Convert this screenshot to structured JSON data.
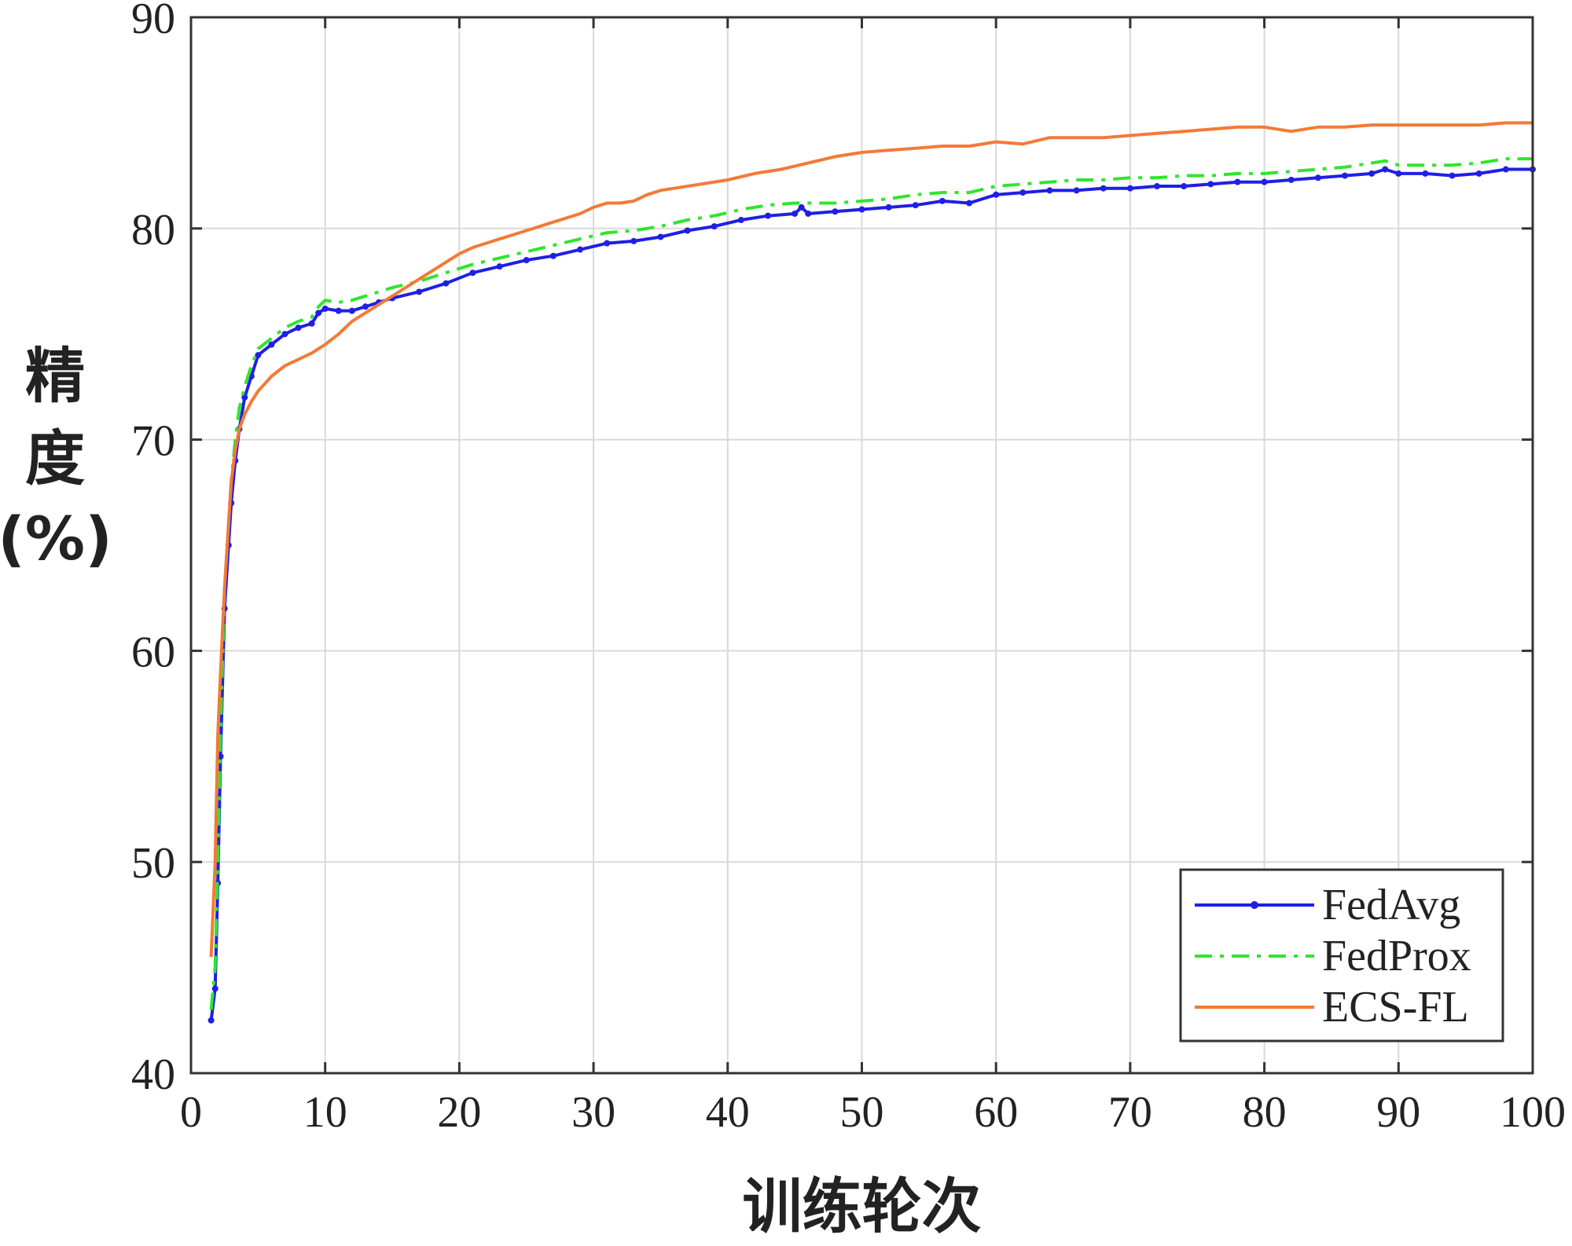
{
  "chart_data": {
    "type": "line",
    "title": "",
    "xlabel": "训练轮次",
    "ylabel_lines": [
      "精",
      "度",
      "(%)"
    ],
    "xlim": [
      0,
      100
    ],
    "ylim": [
      40,
      90
    ],
    "xticks": [
      0,
      10,
      20,
      30,
      40,
      50,
      60,
      70,
      80,
      90,
      100
    ],
    "yticks": [
      40,
      50,
      60,
      70,
      80,
      90
    ],
    "grid": true,
    "legend_position": "bottom-right",
    "series": [
      {
        "name": "FedAvg",
        "color": "#1f1fe6",
        "style": "solid-dot",
        "x": [
          1.5,
          1.8,
          2.0,
          2.2,
          2.5,
          2.8,
          3.0,
          3.3,
          3.6,
          4.0,
          4.5,
          5.0,
          6,
          7,
          8,
          9,
          9.5,
          10,
          11,
          12,
          13,
          14,
          15,
          17,
          19,
          21,
          23,
          25,
          27,
          29,
          31,
          33,
          35,
          37,
          39,
          41,
          43,
          45,
          45.5,
          46,
          48,
          50,
          52,
          54,
          56,
          58,
          60,
          62,
          64,
          66,
          68,
          70,
          72,
          74,
          76,
          78,
          80,
          82,
          84,
          86,
          88,
          89,
          90,
          92,
          94,
          96,
          98,
          100
        ],
        "y": [
          42.5,
          44,
          49,
          55,
          62,
          65,
          67,
          69,
          70.5,
          72,
          73,
          74,
          74.5,
          75,
          75.3,
          75.5,
          76,
          76.2,
          76.1,
          76.1,
          76.3,
          76.5,
          76.7,
          77.0,
          77.4,
          77.9,
          78.2,
          78.5,
          78.7,
          79.0,
          79.3,
          79.4,
          79.6,
          79.9,
          80.1,
          80.4,
          80.6,
          80.7,
          81.0,
          80.7,
          80.8,
          80.9,
          81.0,
          81.1,
          81.3,
          81.2,
          81.6,
          81.7,
          81.8,
          81.8,
          81.9,
          81.9,
          82.0,
          82.0,
          82.1,
          82.2,
          82.2,
          82.3,
          82.4,
          82.5,
          82.6,
          82.8,
          82.6,
          82.6,
          82.5,
          82.6,
          82.8,
          82.8
        ]
      },
      {
        "name": "FedProx",
        "color": "#2ee62e",
        "style": "dash-dot",
        "x": [
          1.5,
          1.8,
          2.0,
          2.2,
          2.5,
          2.8,
          3.0,
          3.3,
          3.6,
          4.0,
          4.5,
          5.0,
          6,
          7,
          8,
          9,
          9.5,
          10,
          11,
          12,
          13,
          14,
          15,
          17,
          19,
          21,
          23,
          25,
          27,
          29,
          31,
          33,
          35,
          37,
          39,
          41,
          43,
          45,
          46,
          48,
          50,
          52,
          54,
          56,
          58,
          60,
          62,
          64,
          66,
          68,
          70,
          72,
          74,
          76,
          78,
          80,
          82,
          84,
          86,
          88,
          89,
          90,
          92,
          94,
          96,
          98,
          100
        ],
        "y": [
          43,
          45,
          50,
          56,
          63,
          66,
          68,
          70,
          71.5,
          72.5,
          73.5,
          74.3,
          74.8,
          75.3,
          75.6,
          75.8,
          76.3,
          76.6,
          76.5,
          76.6,
          76.8,
          77.0,
          77.2,
          77.5,
          77.9,
          78.3,
          78.6,
          78.9,
          79.2,
          79.5,
          79.8,
          79.9,
          80.1,
          80.4,
          80.6,
          80.9,
          81.1,
          81.2,
          81.2,
          81.2,
          81.3,
          81.4,
          81.6,
          81.7,
          81.7,
          82.0,
          82.1,
          82.2,
          82.3,
          82.3,
          82.4,
          82.4,
          82.5,
          82.5,
          82.6,
          82.6,
          82.7,
          82.8,
          82.9,
          83.1,
          83.2,
          83.0,
          83.0,
          83.0,
          83.1,
          83.3,
          83.3
        ]
      },
      {
        "name": "ECS-FL",
        "color": "#f37a36",
        "style": "solid",
        "x": [
          1.5,
          1.8,
          2.0,
          2.2,
          2.5,
          2.8,
          3.0,
          3.3,
          3.6,
          4.0,
          4.5,
          5.0,
          6,
          7,
          8,
          9,
          10,
          11,
          12,
          13,
          14,
          15,
          16,
          17,
          18,
          19,
          20,
          21,
          22,
          23,
          24,
          25,
          26,
          27,
          28,
          29,
          30,
          31,
          32,
          33,
          34,
          35,
          36,
          38,
          40,
          42,
          44,
          46,
          48,
          50,
          52,
          54,
          56,
          58,
          60,
          62,
          64,
          66,
          68,
          70,
          72,
          74,
          76,
          78,
          80,
          82,
          84,
          86,
          88,
          90,
          92,
          94,
          96,
          98,
          100
        ],
        "y": [
          45.5,
          50,
          56,
          59,
          63,
          66,
          68,
          69.5,
          70.5,
          71.2,
          71.8,
          72.3,
          73.0,
          73.5,
          73.8,
          74.1,
          74.5,
          75.0,
          75.6,
          76.0,
          76.4,
          76.8,
          77.2,
          77.6,
          78.0,
          78.4,
          78.8,
          79.1,
          79.3,
          79.5,
          79.7,
          79.9,
          80.1,
          80.3,
          80.5,
          80.7,
          81.0,
          81.2,
          81.2,
          81.3,
          81.6,
          81.8,
          81.9,
          82.1,
          82.3,
          82.6,
          82.8,
          83.1,
          83.4,
          83.6,
          83.7,
          83.8,
          83.9,
          83.9,
          84.1,
          84.0,
          84.3,
          84.3,
          84.3,
          84.4,
          84.5,
          84.6,
          84.7,
          84.8,
          84.8,
          84.6,
          84.8,
          84.8,
          84.9,
          84.9,
          84.9,
          84.9,
          84.9,
          85.0,
          85.0
        ]
      }
    ]
  }
}
